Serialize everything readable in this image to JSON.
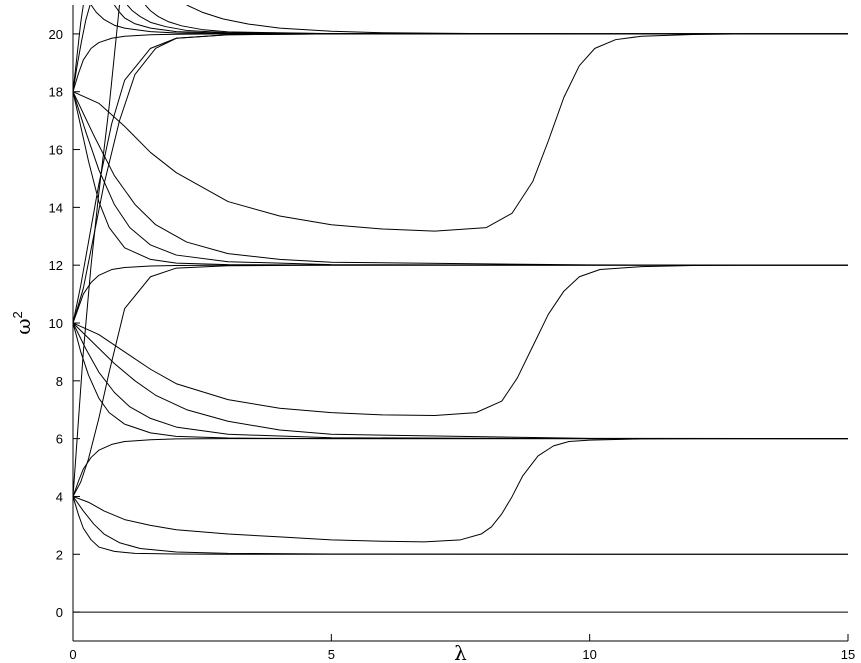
{
  "chart_data": {
    "type": "line",
    "title": "",
    "xlabel": "λ",
    "ylabel_base": "ω",
    "ylabel_sup": "2",
    "xlim": [
      0,
      15
    ],
    "ylim": [
      -1,
      21
    ],
    "xticks": [
      0,
      5,
      10,
      15
    ],
    "yticks": [
      0,
      2,
      4,
      6,
      8,
      10,
      12,
      14,
      16,
      18,
      20
    ],
    "grid": false,
    "legend": "none",
    "line_color": "#000000",
    "series": [
      {
        "x": [
          0,
          15
        ],
        "y": [
          0,
          0
        ]
      },
      {
        "x": [
          0,
          0.1,
          0.2,
          0.35,
          0.5,
          0.8,
          1.2,
          2,
          3,
          5,
          10,
          15
        ],
        "y": [
          4,
          3.4,
          2.9,
          2.5,
          2.25,
          2.1,
          2.03,
          2.01,
          2,
          2,
          2,
          2
        ]
      },
      {
        "x": [
          0,
          0.2,
          0.4,
          0.6,
          0.9,
          1.3,
          2,
          3,
          5,
          10,
          15
        ],
        "y": [
          4,
          3.5,
          3.05,
          2.7,
          2.4,
          2.2,
          2.08,
          2.03,
          2.01,
          2,
          2
        ]
      },
      {
        "x": [
          0,
          0.3,
          0.6,
          1,
          1.5,
          2,
          3,
          4,
          5,
          6,
          6.8,
          7.5,
          7.9,
          8.1,
          8.3,
          8.5,
          8.7,
          9,
          9.3,
          9.6,
          10,
          11,
          12,
          13,
          15
        ],
        "y": [
          4,
          3.8,
          3.5,
          3.2,
          3,
          2.85,
          2.7,
          2.6,
          2.5,
          2.45,
          2.43,
          2.5,
          2.7,
          2.95,
          3.4,
          4,
          4.7,
          5.4,
          5.75,
          5.9,
          5.95,
          5.99,
          6,
          6,
          6
        ]
      },
      {
        "x": [
          0,
          0.1,
          0.2,
          0.35,
          0.5,
          0.75,
          1,
          1.5,
          2,
          3,
          5,
          10,
          15
        ],
        "y": [
          4,
          4.5,
          4.95,
          5.35,
          5.6,
          5.8,
          5.9,
          5.96,
          5.99,
          6,
          6,
          6,
          6
        ]
      },
      {
        "x": [
          0,
          0.1,
          0.2,
          0.35,
          0.5,
          0.7,
          0.9
        ],
        "y": [
          4,
          6.5,
          9,
          12,
          14.5,
          17.5,
          21
        ]
      },
      {
        "x": [
          0,
          0.15,
          0.3,
          0.5,
          0.7,
          1,
          1.5,
          2,
          3,
          5,
          10,
          15
        ],
        "y": [
          10,
          9,
          8.2,
          7.4,
          6.9,
          6.5,
          6.2,
          6.08,
          6.02,
          6,
          6,
          6
        ]
      },
      {
        "x": [
          0,
          0.25,
          0.5,
          0.8,
          1.1,
          1.5,
          2,
          3,
          5,
          10,
          15
        ],
        "y": [
          10,
          9.1,
          8.3,
          7.6,
          7.1,
          6.7,
          6.4,
          6.15,
          6.03,
          6,
          6
        ]
      },
      {
        "x": [
          0,
          0.4,
          0.8,
          1.2,
          1.6,
          2.2,
          3,
          4,
          5,
          10,
          15
        ],
        "y": [
          10,
          9.3,
          8.6,
          8.0,
          7.5,
          7.0,
          6.6,
          6.3,
          6.15,
          6.01,
          6
        ]
      },
      {
        "x": [
          0,
          0.5,
          1,
          1.5,
          2,
          3,
          4,
          5,
          6,
          7,
          7.8,
          8.3,
          8.6,
          8.9,
          9.2,
          9.5,
          9.8,
          10.2,
          11,
          12,
          13,
          15
        ],
        "y": [
          10,
          9.6,
          9.0,
          8.4,
          7.9,
          7.35,
          7.05,
          6.9,
          6.82,
          6.8,
          6.9,
          7.3,
          8.1,
          9.2,
          10.3,
          11.1,
          11.6,
          11.85,
          11.95,
          11.99,
          12,
          12
        ]
      },
      {
        "x": [
          0,
          0.1,
          0.2,
          0.35,
          0.5,
          0.75,
          1,
          1.5,
          2,
          3,
          5,
          10,
          15
        ],
        "y": [
          10,
          10.5,
          11.0,
          11.4,
          11.65,
          11.85,
          11.92,
          11.97,
          11.99,
          12,
          12,
          12,
          12
        ]
      },
      {
        "x": [
          0,
          0.15,
          0.3,
          0.5,
          0.7,
          1,
          1.5,
          2,
          3,
          5,
          10,
          15
        ],
        "y": [
          4,
          4.5,
          5.3,
          6.7,
          8.3,
          10.5,
          11.6,
          11.9,
          11.98,
          12,
          12,
          12
        ]
      },
      {
        "x": [
          0,
          0.15,
          0.3,
          0.5,
          0.7,
          1,
          1.5,
          2,
          3,
          5,
          10,
          15
        ],
        "y": [
          18,
          16.8,
          15.6,
          14.2,
          13.3,
          12.6,
          12.2,
          12.07,
          12.02,
          12,
          12,
          12
        ]
      },
      {
        "x": [
          0,
          0.25,
          0.5,
          0.8,
          1.1,
          1.5,
          2,
          3,
          5,
          10,
          15
        ],
        "y": [
          18,
          16.6,
          15.3,
          14.1,
          13.3,
          12.7,
          12.35,
          12.12,
          12.02,
          12,
          12
        ]
      },
      {
        "x": [
          0,
          0.4,
          0.8,
          1.2,
          1.6,
          2.2,
          3,
          4,
          5,
          10,
          15
        ],
        "y": [
          18,
          16.5,
          15.1,
          14.1,
          13.4,
          12.8,
          12.4,
          12.2,
          12.1,
          12.01,
          12
        ]
      },
      {
        "x": [
          0,
          0.5,
          1,
          1.5,
          2,
          3,
          4,
          5,
          6,
          7,
          8,
          8.5,
          8.9,
          9.2,
          9.5,
          9.8,
          10.1,
          10.5,
          11,
          12,
          13,
          15
        ],
        "y": [
          18,
          17.6,
          16.8,
          15.9,
          15.2,
          14.2,
          13.7,
          13.4,
          13.25,
          13.18,
          13.3,
          13.8,
          14.9,
          16.3,
          17.8,
          18.9,
          19.5,
          19.8,
          19.92,
          19.98,
          20,
          20
        ]
      },
      {
        "x": [
          0,
          0.1,
          0.2,
          0.35,
          0.5,
          0.75,
          1,
          1.5,
          2,
          3,
          5,
          10,
          15
        ],
        "y": [
          18,
          18.6,
          19.1,
          19.5,
          19.7,
          19.85,
          19.92,
          19.97,
          19.99,
          20,
          20,
          20,
          20
        ]
      },
      {
        "x": [
          0,
          0.15,
          0.3,
          0.5,
          0.75,
          1,
          1.5,
          2,
          3,
          5,
          10,
          15
        ],
        "y": [
          10,
          11.3,
          12.8,
          14.8,
          16.9,
          18.4,
          19.5,
          19.85,
          19.97,
          20,
          20,
          20
        ]
      },
      {
        "x": [
          0,
          0.2,
          0.4,
          0.6,
          0.9,
          1.2,
          1.6,
          2,
          3,
          5,
          10,
          15
        ],
        "y": [
          10,
          11.2,
          13,
          14.8,
          17,
          18.6,
          19.5,
          19.85,
          19.97,
          20,
          20,
          20
        ]
      },
      {
        "x": [
          0,
          0.05,
          0.1,
          0.15,
          0.2
        ],
        "y": [
          18,
          18.8,
          19.6,
          20.4,
          21
        ]
      },
      {
        "x": [
          0,
          0.08,
          0.16,
          0.25,
          0.33
        ],
        "y": [
          18,
          18.9,
          19.7,
          20.5,
          21
        ]
      },
      {
        "x": [
          0.35,
          0.45,
          0.6,
          0.8,
          1,
          1.5,
          2,
          3,
          5,
          10,
          15
        ],
        "y": [
          21,
          20.75,
          20.5,
          20.3,
          20.2,
          20.08,
          20.03,
          20.01,
          20,
          20,
          20
        ]
      },
      {
        "x": [
          0.8,
          0.9,
          1.0,
          1.2,
          1.5,
          2,
          3,
          5,
          10,
          15
        ],
        "y": [
          21,
          20.75,
          20.55,
          20.35,
          20.2,
          20.08,
          20.02,
          20,
          20,
          20
        ]
      },
      {
        "x": [
          1.05,
          1.15,
          1.3,
          1.5,
          1.8,
          2.2,
          3,
          5,
          10,
          15
        ],
        "y": [
          21,
          20.8,
          20.6,
          20.4,
          20.25,
          20.12,
          20.04,
          20.01,
          20,
          20
        ]
      },
      {
        "x": [
          1.4,
          1.5,
          1.65,
          1.85,
          2.1,
          2.5,
          3,
          5,
          10,
          15
        ],
        "y": [
          21,
          20.8,
          20.6,
          20.42,
          20.28,
          20.15,
          20.07,
          20.01,
          20,
          20
        ]
      },
      {
        "x": [
          2.2,
          2.5,
          2.9,
          3.4,
          4,
          5,
          6,
          8,
          10,
          15
        ],
        "y": [
          21,
          20.75,
          20.52,
          20.34,
          20.2,
          20.09,
          20.04,
          20.01,
          20,
          20
        ]
      }
    ]
  }
}
